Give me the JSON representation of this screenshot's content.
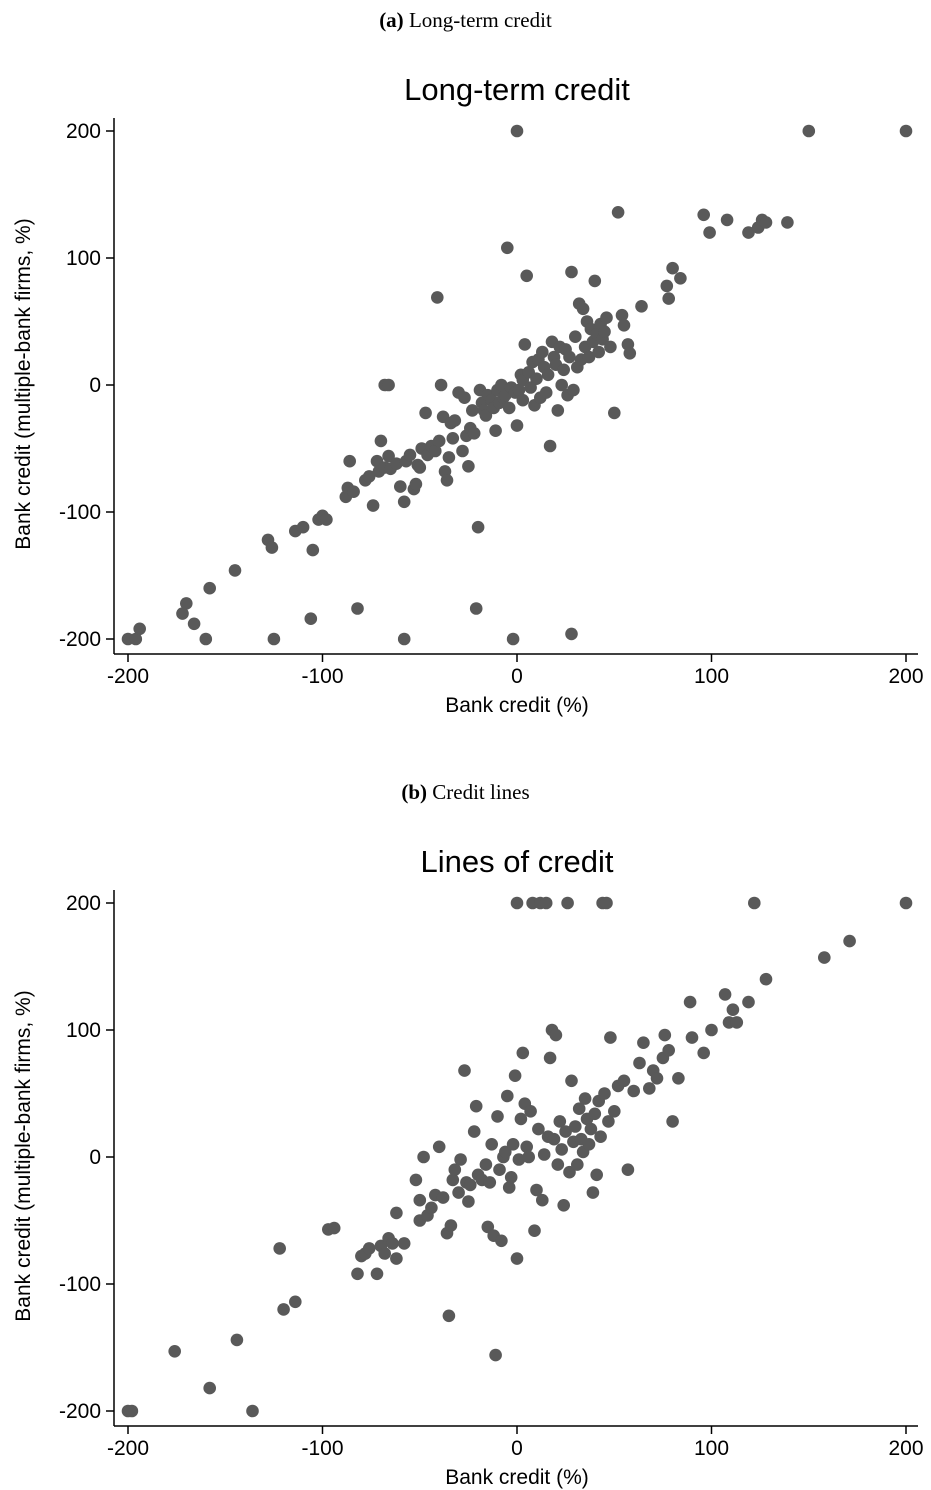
{
  "panels": [
    {
      "caption_letter": "(a)",
      "caption_text": " Long-term credit"
    },
    {
      "caption_letter": "(b)",
      "caption_text": " Credit lines"
    }
  ],
  "colors": {
    "marker": "#595959",
    "axis": "#000000"
  },
  "chart_data": [
    {
      "type": "scatter",
      "title": "Long-term credit",
      "xlabel": "Bank credit (%)",
      "ylabel": "Bank credit (multiple-bank firms, %)",
      "xlim": [
        -200,
        200
      ],
      "ylim": [
        -200,
        200
      ],
      "xticks": [
        -200,
        -100,
        0,
        100,
        200
      ],
      "yticks": [
        200,
        100,
        0,
        -100,
        -200
      ],
      "xtick_labels": [
        "-200",
        "-100",
        "0",
        "100",
        "200"
      ],
      "ytick_labels": [
        "200",
        "100",
        "0",
        "-100",
        "-200"
      ],
      "grid": false,
      "legend": "none",
      "points": [
        [
          -200,
          -200
        ],
        [
          -196,
          -200
        ],
        [
          -194,
          -192
        ],
        [
          -170,
          -172
        ],
        [
          -172,
          -180
        ],
        [
          -166,
          -188
        ],
        [
          -160,
          -200
        ],
        [
          -158,
          -160
        ],
        [
          -145,
          -146
        ],
        [
          -128,
          -122
        ],
        [
          -126,
          -128
        ],
        [
          -125,
          -200
        ],
        [
          -114,
          -115
        ],
        [
          -110,
          -112
        ],
        [
          -106,
          -184
        ],
        [
          -105,
          -130
        ],
        [
          -102,
          -106
        ],
        [
          -100,
          -103
        ],
        [
          -98,
          -106
        ],
        [
          -88,
          -88
        ],
        [
          -87,
          -81
        ],
        [
          -86,
          -60
        ],
        [
          -84,
          -84
        ],
        [
          -82,
          -176
        ],
        [
          -78,
          -75
        ],
        [
          -76,
          -72
        ],
        [
          -74,
          -95
        ],
        [
          -72,
          -60
        ],
        [
          -71,
          -68
        ],
        [
          -70,
          -44
        ],
        [
          -68,
          -65
        ],
        [
          -66,
          -56
        ],
        [
          -65,
          -66
        ],
        [
          -68,
          0
        ],
        [
          -66,
          0
        ],
        [
          -62,
          -62
        ],
        [
          -60,
          -80
        ],
        [
          -58,
          -92
        ],
        [
          -58,
          -200
        ],
        [
          -57,
          -60
        ],
        [
          -55,
          -55
        ],
        [
          -53,
          -82
        ],
        [
          -52,
          -78
        ],
        [
          -51,
          -63
        ],
        [
          -50,
          -65
        ],
        [
          -49,
          -50
        ],
        [
          -47,
          -22
        ],
        [
          -46,
          -55
        ],
        [
          -44,
          -48
        ],
        [
          -42,
          -52
        ],
        [
          -41,
          69
        ],
        [
          -40,
          -44
        ],
        [
          -39,
          0
        ],
        [
          -38,
          -25
        ],
        [
          -37,
          -68
        ],
        [
          -36,
          -75
        ],
        [
          -35,
          -57
        ],
        [
          -34,
          -30
        ],
        [
          -33,
          -42
        ],
        [
          -32,
          -28
        ],
        [
          -30,
          -6
        ],
        [
          -28,
          -52
        ],
        [
          -27,
          -10
        ],
        [
          -26,
          -40
        ],
        [
          -25,
          -64
        ],
        [
          -24,
          -34
        ],
        [
          -23,
          -20
        ],
        [
          -22,
          -38
        ],
        [
          -21,
          -176
        ],
        [
          -20,
          -112
        ],
        [
          -19,
          -4
        ],
        [
          -18,
          -14
        ],
        [
          -17,
          -20
        ],
        [
          -16,
          -24
        ],
        [
          -15,
          -8
        ],
        [
          -13,
          -12
        ],
        [
          -12,
          -18
        ],
        [
          -11,
          -36
        ],
        [
          -10,
          -4
        ],
        [
          -9,
          -14
        ],
        [
          -8,
          0
        ],
        [
          -7,
          -10
        ],
        [
          -6,
          -8
        ],
        [
          -5,
          108
        ],
        [
          -4,
          -18
        ],
        [
          -3,
          -2
        ],
        [
          -2,
          -200
        ],
        [
          -1,
          -6
        ],
        [
          0,
          -32
        ],
        [
          0,
          200
        ],
        [
          1,
          -4
        ],
        [
          2,
          8
        ],
        [
          3,
          4
        ],
        [
          3,
          -12
        ],
        [
          4,
          32
        ],
        [
          5,
          86
        ],
        [
          6,
          10
        ],
        [
          7,
          -2
        ],
        [
          8,
          18
        ],
        [
          9,
          -16
        ],
        [
          10,
          5
        ],
        [
          11,
          20
        ],
        [
          12,
          -10
        ],
        [
          13,
          26
        ],
        [
          14,
          14
        ],
        [
          15,
          -6
        ],
        [
          16,
          8
        ],
        [
          17,
          -48
        ],
        [
          18,
          34
        ],
        [
          19,
          22
        ],
        [
          20,
          16
        ],
        [
          21,
          -20
        ],
        [
          22,
          30
        ],
        [
          23,
          0
        ],
        [
          24,
          12
        ],
        [
          25,
          28
        ],
        [
          26,
          -8
        ],
        [
          27,
          22
        ],
        [
          28,
          89
        ],
        [
          28,
          -196
        ],
        [
          29,
          -4
        ],
        [
          30,
          38
        ],
        [
          31,
          14
        ],
        [
          32,
          64
        ],
        [
          33,
          20
        ],
        [
          34,
          60
        ],
        [
          35,
          30
        ],
        [
          36,
          50
        ],
        [
          37,
          22
        ],
        [
          38,
          44
        ],
        [
          39,
          34
        ],
        [
          40,
          82
        ],
        [
          41,
          40
        ],
        [
          42,
          26
        ],
        [
          43,
          48
        ],
        [
          44,
          36
        ],
        [
          45,
          42
        ],
        [
          46,
          53
        ],
        [
          48,
          30
        ],
        [
          50,
          -22
        ],
        [
          52,
          136
        ],
        [
          54,
          55
        ],
        [
          55,
          47
        ],
        [
          57,
          32
        ],
        [
          58,
          25
        ],
        [
          64,
          62
        ],
        [
          77,
          78
        ],
        [
          78,
          68
        ],
        [
          80,
          92
        ],
        [
          84,
          84
        ],
        [
          96,
          134
        ],
        [
          99,
          120
        ],
        [
          108,
          130
        ],
        [
          119,
          120
        ],
        [
          124,
          124
        ],
        [
          126,
          130
        ],
        [
          128,
          128
        ],
        [
          139,
          128
        ],
        [
          150,
          200
        ],
        [
          200,
          200
        ]
      ]
    },
    {
      "type": "scatter",
      "title": "Lines of credit",
      "xlabel": "Bank credit (%)",
      "ylabel": "Bank credit (multiple-bank firms, %)",
      "xlim": [
        -200,
        200
      ],
      "ylim": [
        -200,
        200
      ],
      "xticks": [
        -200,
        -100,
        0,
        100,
        200
      ],
      "yticks": [
        200,
        100,
        0,
        -100,
        -200
      ],
      "xtick_labels": [
        "-200",
        "-100",
        "0",
        "100",
        "200"
      ],
      "ytick_labels": [
        "200",
        "100",
        "0",
        "-100",
        "-200"
      ],
      "grid": false,
      "legend": "none",
      "points": [
        [
          -200,
          -200
        ],
        [
          -198,
          -200
        ],
        [
          -176,
          -153
        ],
        [
          -158,
          -182
        ],
        [
          -144,
          -144
        ],
        [
          -136,
          -200
        ],
        [
          -122,
          -72
        ],
        [
          -120,
          -120
        ],
        [
          -114,
          -114
        ],
        [
          -97,
          -57
        ],
        [
          -94,
          -56
        ],
        [
          -82,
          -92
        ],
        [
          -80,
          -78
        ],
        [
          -78,
          -76
        ],
        [
          -76,
          -72
        ],
        [
          -72,
          -92
        ],
        [
          -70,
          -70
        ],
        [
          -68,
          -76
        ],
        [
          -66,
          -64
        ],
        [
          -64,
          -68
        ],
        [
          -62,
          -80
        ],
        [
          -62,
          -44
        ],
        [
          -58,
          -68
        ],
        [
          -52,
          -18
        ],
        [
          -50,
          -34
        ],
        [
          -50,
          -50
        ],
        [
          -48,
          0
        ],
        [
          -46,
          -46
        ],
        [
          -44,
          -40
        ],
        [
          -42,
          -30
        ],
        [
          -40,
          8
        ],
        [
          -38,
          -32
        ],
        [
          -36,
          -60
        ],
        [
          -35,
          -125
        ],
        [
          -34,
          -54
        ],
        [
          -33,
          -18
        ],
        [
          -32,
          -10
        ],
        [
          -30,
          -28
        ],
        [
          -29,
          -2
        ],
        [
          -27,
          68
        ],
        [
          -26,
          -20
        ],
        [
          -25,
          -35
        ],
        [
          -24,
          -22
        ],
        [
          -22,
          20
        ],
        [
          -21,
          40
        ],
        [
          -20,
          -14
        ],
        [
          -18,
          -18
        ],
        [
          -16,
          -6
        ],
        [
          -15,
          -55
        ],
        [
          -14,
          -20
        ],
        [
          -13,
          10
        ],
        [
          -12,
          -62
        ],
        [
          -11,
          -156
        ],
        [
          -10,
          32
        ],
        [
          -9,
          -10
        ],
        [
          -8,
          -66
        ],
        [
          -7,
          0
        ],
        [
          -6,
          4
        ],
        [
          -5,
          48
        ],
        [
          -4,
          -24
        ],
        [
          -3,
          -16
        ],
        [
          -2,
          10
        ],
        [
          -1,
          64
        ],
        [
          0,
          200
        ],
        [
          0,
          -80
        ],
        [
          1,
          -2
        ],
        [
          2,
          30
        ],
        [
          3,
          82
        ],
        [
          4,
          42
        ],
        [
          5,
          8
        ],
        [
          6,
          0
        ],
        [
          7,
          36
        ],
        [
          8,
          200
        ],
        [
          9,
          -58
        ],
        [
          10,
          -26
        ],
        [
          11,
          22
        ],
        [
          12,
          200
        ],
        [
          13,
          -34
        ],
        [
          14,
          2
        ],
        [
          15,
          200
        ],
        [
          16,
          16
        ],
        [
          17,
          78
        ],
        [
          18,
          100
        ],
        [
          19,
          14
        ],
        [
          20,
          96
        ],
        [
          21,
          -6
        ],
        [
          22,
          28
        ],
        [
          23,
          6
        ],
        [
          24,
          -38
        ],
        [
          25,
          20
        ],
        [
          26,
          200
        ],
        [
          27,
          -12
        ],
        [
          28,
          60
        ],
        [
          29,
          12
        ],
        [
          30,
          24
        ],
        [
          31,
          -6
        ],
        [
          32,
          38
        ],
        [
          33,
          14
        ],
        [
          34,
          4
        ],
        [
          35,
          46
        ],
        [
          36,
          30
        ],
        [
          37,
          10
        ],
        [
          38,
          22
        ],
        [
          39,
          -28
        ],
        [
          40,
          34
        ],
        [
          41,
          -14
        ],
        [
          42,
          44
        ],
        [
          43,
          16
        ],
        [
          44,
          200
        ],
        [
          45,
          50
        ],
        [
          46,
          200
        ],
        [
          47,
          28
        ],
        [
          48,
          94
        ],
        [
          50,
          36
        ],
        [
          52,
          56
        ],
        [
          55,
          60
        ],
        [
          57,
          -10
        ],
        [
          60,
          52
        ],
        [
          63,
          74
        ],
        [
          65,
          90
        ],
        [
          68,
          54
        ],
        [
          70,
          68
        ],
        [
          72,
          62
        ],
        [
          75,
          78
        ],
        [
          76,
          96
        ],
        [
          78,
          84
        ],
        [
          80,
          28
        ],
        [
          83,
          62
        ],
        [
          89,
          122
        ],
        [
          90,
          94
        ],
        [
          96,
          82
        ],
        [
          100,
          100
        ],
        [
          107,
          128
        ],
        [
          109,
          106
        ],
        [
          111,
          116
        ],
        [
          113,
          106
        ],
        [
          119,
          122
        ],
        [
          122,
          200
        ],
        [
          128,
          140
        ],
        [
          158,
          157
        ],
        [
          171,
          170
        ],
        [
          200,
          200
        ]
      ]
    }
  ]
}
